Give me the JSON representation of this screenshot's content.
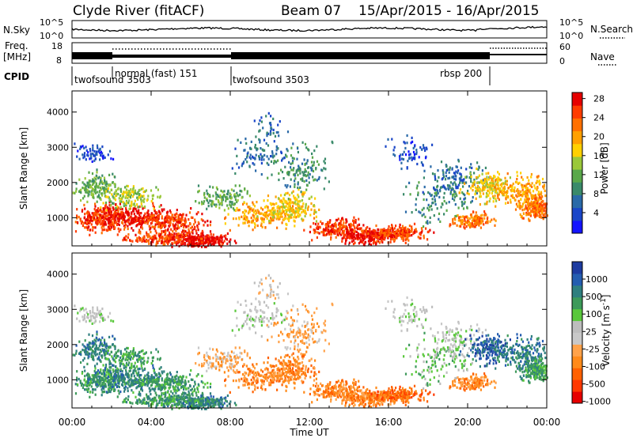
{
  "header": {
    "station": "Clyde River (fitACF)",
    "beam": "Beam 07",
    "date_range": "15/Apr/2015 - 16/Apr/2015"
  },
  "top_panels": {
    "nsky": {
      "label": "N.Sky",
      "ticks": [
        "10^5",
        "10^0"
      ],
      "right_label": "N.Search",
      "right_ticks": [
        "10^5",
        "10^0"
      ]
    },
    "freq": {
      "label_line1": "Freq.",
      "label_line2": "[MHz]",
      "ticks": [
        "18",
        "8"
      ],
      "right_label": "Nave",
      "right_ticks": [
        "60",
        "0"
      ]
    },
    "cpid": {
      "label": "CPID",
      "segments": [
        {
          "name": "twofsound 3503",
          "start_hour": 0,
          "end_hour": 2
        },
        {
          "name": "normal (fast) 151",
          "start_hour": 2,
          "end_hour": 8
        },
        {
          "name": "twofsound 3503",
          "start_hour": 8,
          "end_hour": 21
        },
        {
          "name": "rbsp 200",
          "start_hour": 21,
          "end_hour": 24
        }
      ]
    }
  },
  "chart_data": [
    {
      "type": "heatmap",
      "title": "",
      "xlabel": "Time UT",
      "ylabel": "Slant Range [km]",
      "x_ticks": [
        "00:00",
        "04:00",
        "08:00",
        "12:00",
        "16:00",
        "20:00",
        "00:00"
      ],
      "x_range_hours": [
        0,
        24
      ],
      "y_ticks": [
        "1000",
        "2000",
        "3000",
        "4000"
      ],
      "ylim": [
        200,
        4600
      ],
      "colorbar": {
        "label": "Power [dB]",
        "ticks": [
          "4",
          "8",
          "12",
          "16",
          "20",
          "24",
          "28"
        ],
        "colors": [
          "#1414ff",
          "#1a46c8",
          "#2a6aa8",
          "#3a8a6a",
          "#5aa84a",
          "#9ac83a",
          "#ffd000",
          "#ffa000",
          "#ff7000",
          "#ff3c00",
          "#e60000"
        ]
      }
    },
    {
      "type": "heatmap",
      "title": "",
      "xlabel": "Time UT",
      "ylabel": "Slant Range [km]",
      "x_ticks": [
        "00:00",
        "04:00",
        "08:00",
        "12:00",
        "16:00",
        "20:00",
        "00:00"
      ],
      "x_range_hours": [
        0,
        24
      ],
      "y_ticks": [
        "1000",
        "2000",
        "3000",
        "4000"
      ],
      "ylim": [
        200,
        4600
      ],
      "colorbar": {
        "label": "Velocity [m s^-1]",
        "ticks": [
          "1000",
          "500",
          "100",
          "25",
          "-25",
          "-100",
          "-500",
          "-1000"
        ],
        "colors": [
          "#1d3ba0",
          "#245db0",
          "#2f7f7f",
          "#3d9a5a",
          "#5ac83c",
          "#bdbdbd",
          "#c8c8c8",
          "#ffa24a",
          "#ff8a1a",
          "#ff6000",
          "#ff3800",
          "#e60000"
        ]
      }
    }
  ]
}
